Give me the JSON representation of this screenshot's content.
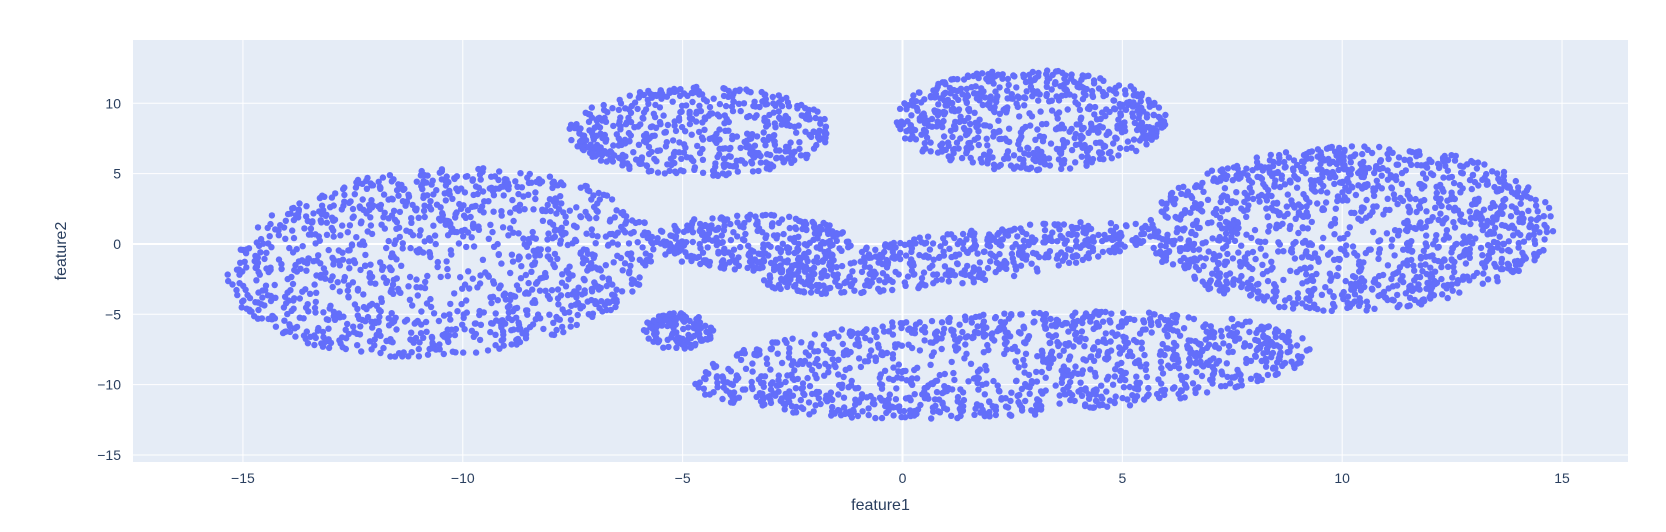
{
  "chart_data": {
    "type": "scatter",
    "title": "",
    "xlabel": "feature1",
    "ylabel": "feature2",
    "xlim": [
      -17.5,
      16.5
    ],
    "ylim": [
      -15.5,
      14.5
    ],
    "xticks": [
      -15,
      -10,
      -5,
      0,
      5,
      10,
      15
    ],
    "yticks": [
      -15,
      -10,
      -5,
      0,
      5,
      10
    ],
    "xtick_labels": [
      "−15",
      "−10",
      "−5",
      "0",
      "5",
      "10",
      "15"
    ],
    "ytick_labels": [
      "−15",
      "−10",
      "−5",
      "0",
      "5",
      "10"
    ],
    "grid": true,
    "legend": "none",
    "colors": {
      "marker": "#636efa",
      "plot_bg": "#e5ecf6",
      "grid": "#ffffff",
      "text": "#2a3f5f"
    },
    "clusters": [
      {
        "cx": -10.5,
        "cy": -1.3,
        "rx": 4.8,
        "ry": 6.8,
        "rot": -10,
        "n": 1150
      },
      {
        "cx": -5.1,
        "cy": -6.2,
        "rx": 0.8,
        "ry": 1.3,
        "rot": 0,
        "n": 120
      },
      {
        "cx": -4.6,
        "cy": 8.0,
        "rx": 3.0,
        "ry": 3.2,
        "rot": 0,
        "n": 520
      },
      {
        "cx": -3.4,
        "cy": 0.1,
        "rx": 2.3,
        "ry": 2.0,
        "rot": -5,
        "n": 300
      },
      {
        "cx": 2.9,
        "cy": 8.8,
        "rx": 3.1,
        "ry": 3.6,
        "rot": 0,
        "n": 640
      },
      {
        "cx": 1.3,
        "cy": -1.0,
        "rx": 4.9,
        "ry": 1.7,
        "rot": 25,
        "n": 520
      },
      {
        "cx": 2.3,
        "cy": -8.6,
        "rx": 7.2,
        "ry": 3.6,
        "rot": 12,
        "n": 1150
      },
      {
        "cx": 10.2,
        "cy": 1.1,
        "rx": 4.6,
        "ry": 5.9,
        "rot": -5,
        "n": 1250
      }
    ]
  }
}
